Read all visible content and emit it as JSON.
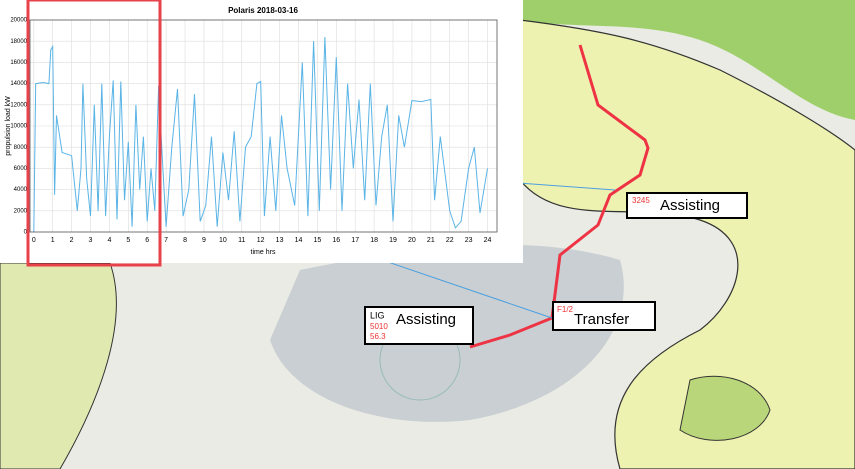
{
  "chart_data": {
    "type": "line",
    "title": "Polaris 2018-03-16",
    "x_label": "time hrs",
    "y_label": "propulsion load kW",
    "x": [
      0,
      0.1,
      0.5,
      0.8,
      0.9,
      1.0,
      1.1,
      1.2,
      1.5,
      2.0,
      2.3,
      2.5,
      2.6,
      2.8,
      3.0,
      3.2,
      3.4,
      3.6,
      3.8,
      4.0,
      4.2,
      4.4,
      4.6,
      4.8,
      5.0,
      5.2,
      5.4,
      5.6,
      5.8,
      6.0,
      6.2,
      6.4,
      6.6,
      6.8,
      7.0,
      7.3,
      7.6,
      7.9,
      8.2,
      8.5,
      8.8,
      9.1,
      9.4,
      9.7,
      10.0,
      10.3,
      10.6,
      10.9,
      11.2,
      11.5,
      11.8,
      12.0,
      12.2,
      12.5,
      12.8,
      13.1,
      13.4,
      13.8,
      14.2,
      14.5,
      14.8,
      15.1,
      15.4,
      15.7,
      16.0,
      16.3,
      16.6,
      16.9,
      17.2,
      17.5,
      17.8,
      18.1,
      18.4,
      18.7,
      19.0,
      19.3,
      19.6,
      20.0,
      20.5,
      21.0,
      21.2,
      21.5,
      22.0,
      22.3,
      22.6,
      23.0,
      23.3,
      23.6,
      24.0
    ],
    "series": [
      {
        "color": "#5ab4e6",
        "values": [
          0,
          14000,
          14100,
          14000,
          17200,
          17500,
          3500,
          11000,
          7500,
          7200,
          2000,
          6000,
          14000,
          5000,
          1500,
          12000,
          2000,
          14000,
          1500,
          9000,
          14300,
          1200,
          14200,
          3000,
          8500,
          500,
          12000,
          4000,
          9000,
          1000,
          6000,
          2000,
          13800,
          7000,
          500,
          8000,
          13500,
          1500,
          4000,
          13000,
          1000,
          2500,
          9000,
          500,
          7500,
          3000,
          9500,
          1000,
          8000,
          9000,
          14000,
          14200,
          1500,
          9000,
          2000,
          11000,
          6000,
          2500,
          16000,
          1500,
          18000,
          2000,
          18400,
          4000,
          16500,
          2000,
          14000,
          6000,
          12500,
          3000,
          14000,
          2500,
          9000,
          12000,
          1000,
          11000,
          8000,
          12400,
          12300,
          12500,
          3000,
          9000,
          2000,
          400,
          1000,
          6000,
          8000,
          1800,
          6000
        ]
      }
    ],
    "xlim": [
      -0.2,
      24.5
    ],
    "xticks": [
      0,
      1,
      2,
      3,
      4,
      5,
      6,
      7,
      8,
      9,
      10,
      11,
      12,
      13,
      14,
      15,
      16,
      17,
      18,
      19,
      20,
      21,
      22,
      23,
      24
    ],
    "ylim": [
      0,
      20000
    ],
    "yticks": [
      0,
      2000,
      4000,
      6000,
      8000,
      10000,
      12000,
      14000,
      16000,
      18000,
      20000
    ],
    "grid": true
  },
  "map_labels": [
    {
      "text": "Assisting",
      "code": "3245"
    },
    {
      "text": "Transfer",
      "code": "F1/2"
    },
    {
      "text": "Assisting",
      "code": "LIG",
      "lines": [
        "5010",
        "56.3"
      ]
    }
  ]
}
